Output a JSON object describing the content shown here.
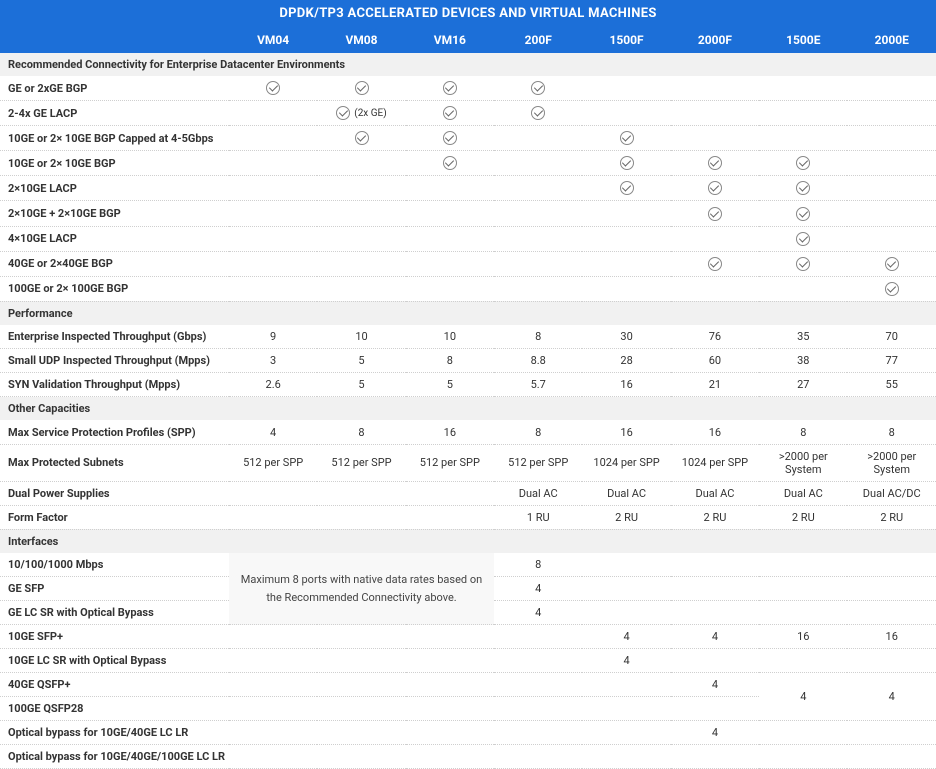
{
  "title": "DPDK/TP3 ACCELERATED DEVICES AND VIRTUAL MACHINES",
  "columns": [
    "VM04",
    "VM08",
    "VM16",
    "200F",
    "1500F",
    "2000F",
    "1500E",
    "2000E"
  ],
  "sections": [
    {
      "title": "Recommended Connectivity for Enterprise Datacenter Environments",
      "rows": [
        {
          "label": "GE or 2xGE BGP",
          "cells": [
            "check",
            "check",
            "check",
            "check",
            "",
            "",
            "",
            ""
          ]
        },
        {
          "label": "2-4x GE LACP",
          "cells": [
            "",
            "check:(2x GE)",
            "check",
            "check",
            "",
            "",
            "",
            ""
          ]
        },
        {
          "label": "10GE or 2× 10GE BGP Capped at 4-5Gbps",
          "cells": [
            "",
            "check",
            "check",
            "",
            "check",
            "",
            "",
            ""
          ]
        },
        {
          "label": "10GE or 2× 10GE BGP",
          "cells": [
            "",
            "",
            "check",
            "",
            "check",
            "check",
            "check",
            ""
          ]
        },
        {
          "label": "2×10GE LACP",
          "cells": [
            "",
            "",
            "",
            "",
            "check",
            "check",
            "check",
            ""
          ]
        },
        {
          "label": "2×10GE + 2×10GE BGP",
          "cells": [
            "",
            "",
            "",
            "",
            "",
            "check",
            "check",
            ""
          ]
        },
        {
          "label": "4×10GE LACP",
          "cells": [
            "",
            "",
            "",
            "",
            "",
            "",
            "check",
            ""
          ]
        },
        {
          "label": "40GE or 2×40GE BGP",
          "cells": [
            "",
            "",
            "",
            "",
            "",
            "check",
            "check",
            "check"
          ]
        },
        {
          "label": "100GE or 2× 100GE BGP",
          "cells": [
            "",
            "",
            "",
            "",
            "",
            "",
            "",
            "check"
          ]
        }
      ]
    },
    {
      "title": "Performance",
      "rows": [
        {
          "label": "Enterprise Inspected Throughput (Gbps)",
          "cells": [
            "9",
            "10",
            "10",
            "8",
            "30",
            "76",
            "35",
            "70"
          ]
        },
        {
          "label": "Small UDP Inspected Throughput (Mpps)",
          "cells": [
            "3",
            "5",
            "8",
            "8.8",
            "28",
            "60",
            "38",
            "77"
          ]
        },
        {
          "label": "SYN Validation Throughput (Mpps)",
          "cells": [
            "2.6",
            "5",
            "5",
            "5.7",
            "16",
            "21",
            "27",
            "55"
          ]
        }
      ]
    },
    {
      "title": "Other Capacities",
      "rows": [
        {
          "label": "Max Service Protection Profiles (SPP)",
          "cells": [
            "4",
            "8",
            "16",
            "8",
            "16",
            "16",
            "8",
            "8"
          ]
        },
        {
          "label": "Max Protected Subnets",
          "cells": [
            "512 per SPP",
            "512 per SPP",
            "512 per SPP",
            "512 per SPP",
            "1024 per SPP",
            "1024 per SPP",
            ">2000 per System",
            ">2000 per System"
          ]
        },
        {
          "label": "Dual Power Supplies",
          "cells": [
            "",
            "",
            "",
            "Dual AC",
            "Dual AC",
            "Dual AC",
            "Dual AC",
            "Dual AC/DC"
          ]
        },
        {
          "label": "Form Factor",
          "cells": [
            "",
            "",
            "",
            "1 RU",
            "2 RU",
            "2 RU",
            "2 RU",
            "2 RU"
          ]
        }
      ]
    },
    {
      "title": "Interfaces",
      "merged_note": "Maximum 8 ports with native data rates based on the Recommended Connectivity above.",
      "merged_note_rows": 3,
      "rows": [
        {
          "label": "10/100/1000 Mbps",
          "cells_after_merge": [
            "8",
            "",
            "",
            "",
            ""
          ]
        },
        {
          "label": "GE SFP",
          "cells_after_merge": [
            "4",
            "",
            "",
            "",
            ""
          ]
        },
        {
          "label": "GE LC SR with Optical Bypass",
          "cells_after_merge": [
            "4",
            "",
            "",
            "",
            ""
          ]
        },
        {
          "label": "10GE SFP+",
          "cells": [
            "",
            "",
            "",
            "",
            "4",
            "4",
            "16",
            "16"
          ]
        },
        {
          "label": "10GE LC SR with Optical Bypass",
          "cells": [
            "",
            "",
            "",
            "",
            "4",
            "",
            "",
            ""
          ]
        },
        {
          "label": "40GE QSFP+",
          "cells": [
            "",
            "",
            "",
            "",
            "",
            "4",
            "",
            ""
          ],
          "share_next": true
        },
        {
          "label": "100GE QSFP28",
          "cells": [
            "",
            "",
            "",
            "",
            "",
            "",
            "",
            ""
          ],
          "share_col6_value": "4",
          "share_col7_value": "4"
        },
        {
          "label": "Optical bypass for 10GE/40GE LC LR",
          "cells": [
            "",
            "",
            "",
            "",
            "",
            "4",
            "",
            ""
          ]
        },
        {
          "label": "Optical bypass for 10GE/40GE/100GE LC LR",
          "cells": [
            "",
            "",
            "",
            "",
            "",
            "",
            "",
            ""
          ]
        }
      ]
    }
  ]
}
